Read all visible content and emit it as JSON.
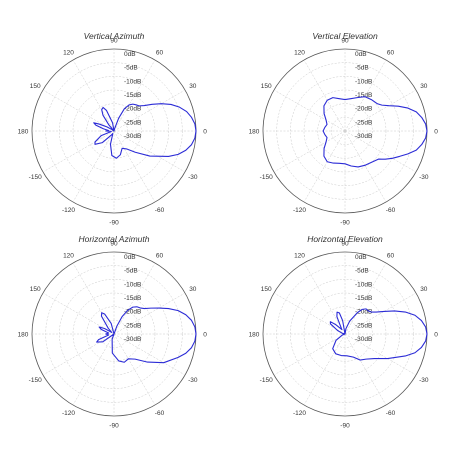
{
  "chart_data": [
    {
      "type": "polar",
      "title": "Vertical Azimuth",
      "r_unit": "dB",
      "r_range": [
        -30,
        0
      ],
      "rings": [
        "0dB",
        "-5dB",
        "-10dB",
        "-15dB",
        "-20dB",
        "-25dB",
        "-30dB"
      ],
      "angle_labels": [
        "0",
        "30",
        "60",
        "90",
        "120",
        "150",
        "180",
        "-150",
        "-120",
        "-90",
        "-60",
        "-30"
      ],
      "grid": true,
      "series_color": "#2b2bd6",
      "series": [
        {
          "values": [
            {
              "angle": 0,
              "db": 0
            },
            {
              "angle": 5,
              "db": -0.3
            },
            {
              "angle": 10,
              "db": -1.2
            },
            {
              "angle": 15,
              "db": -2.5
            },
            {
              "angle": 20,
              "db": -4.5
            },
            {
              "angle": 25,
              "db": -7
            },
            {
              "angle": 30,
              "db": -10
            },
            {
              "angle": 35,
              "db": -13
            },
            {
              "angle": 40,
              "db": -15.5
            },
            {
              "angle": 45,
              "db": -17
            },
            {
              "angle": 50,
              "db": -17.5
            },
            {
              "angle": 55,
              "db": -18
            },
            {
              "angle": 60,
              "db": -19
            },
            {
              "angle": 65,
              "db": -21
            },
            {
              "angle": 70,
              "db": -25
            },
            {
              "angle": 75,
              "db": -29
            },
            {
              "angle": 80,
              "db": -30
            },
            {
              "angle": 90,
              "db": -30
            },
            {
              "angle": 100,
              "db": -27
            },
            {
              "angle": 110,
              "db": -22
            },
            {
              "angle": 115,
              "db": -20.5
            },
            {
              "angle": 120,
              "db": -21
            },
            {
              "angle": 125,
              "db": -23
            },
            {
              "angle": 130,
              "db": -27
            },
            {
              "angle": 140,
              "db": -30
            },
            {
              "angle": 145,
              "db": -29
            },
            {
              "angle": 150,
              "db": -27
            },
            {
              "angle": 155,
              "db": -24
            },
            {
              "angle": 158,
              "db": -22
            },
            {
              "angle": 162,
              "db": -23
            },
            {
              "angle": 168,
              "db": -26
            },
            {
              "angle": 175,
              "db": -28
            },
            {
              "angle": 180,
              "db": -27
            },
            {
              "angle": 190,
              "db": -29
            },
            {
              "angle": 200,
              "db": -25
            },
            {
              "angle": 210,
              "db": -22
            },
            {
              "angle": 215,
              "db": -21.5
            },
            {
              "angle": 225,
              "db": -24
            },
            {
              "angle": 235,
              "db": -28
            },
            {
              "angle": 245,
              "db": -29
            },
            {
              "angle": 255,
              "db": -25
            },
            {
              "angle": 265,
              "db": -21
            },
            {
              "angle": 275,
              "db": -20
            },
            {
              "angle": 285,
              "db": -21
            },
            {
              "angle": 295,
              "db": -23
            },
            {
              "angle": 305,
              "db": -22
            },
            {
              "angle": 315,
              "db": -19
            },
            {
              "angle": 325,
              "db": -14
            },
            {
              "angle": 335,
              "db": -8
            },
            {
              "angle": 340,
              "db": -5
            },
            {
              "angle": 345,
              "db": -2.8
            },
            {
              "angle": 350,
              "db": -1.2
            },
            {
              "angle": 355,
              "db": -0.3
            }
          ]
        }
      ]
    },
    {
      "type": "polar",
      "title": "Vertical Elevation",
      "r_unit": "dB",
      "r_range": [
        -30,
        0
      ],
      "rings": [
        "0dB",
        "-5dB",
        "-10dB",
        "-15dB",
        "-20dB",
        "-25dB",
        "-30dB"
      ],
      "angle_labels": [
        "0",
        "30",
        "60",
        "90",
        "120",
        "150",
        "180",
        "-150",
        "-120",
        "-90",
        "-60",
        "-30"
      ],
      "grid": true,
      "series_color": "#2b2bd6",
      "series": [
        {
          "values": [
            {
              "angle": 0,
              "db": 0
            },
            {
              "angle": 5,
              "db": -0.4
            },
            {
              "angle": 10,
              "db": -1.5
            },
            {
              "angle": 15,
              "db": -3
            },
            {
              "angle": 20,
              "db": -5.5
            },
            {
              "angle": 25,
              "db": -8.5
            },
            {
              "angle": 30,
              "db": -11.5
            },
            {
              "angle": 35,
              "db": -13.5
            },
            {
              "angle": 40,
              "db": -14.5
            },
            {
              "angle": 50,
              "db": -15
            },
            {
              "angle": 60,
              "db": -15.5
            },
            {
              "angle": 70,
              "db": -17
            },
            {
              "angle": 80,
              "db": -18
            },
            {
              "angle": 90,
              "db": -18.5
            },
            {
              "angle": 100,
              "db": -18
            },
            {
              "angle": 110,
              "db": -17
            },
            {
              "angle": 120,
              "db": -17
            },
            {
              "angle": 130,
              "db": -18
            },
            {
              "angle": 140,
              "db": -20
            },
            {
              "angle": 150,
              "db": -22
            },
            {
              "angle": 160,
              "db": -23
            },
            {
              "angle": 170,
              "db": -22.5
            },
            {
              "angle": 180,
              "db": -22
            },
            {
              "angle": 190,
              "db": -22.5
            },
            {
              "angle": 200,
              "db": -23
            },
            {
              "angle": 210,
              "db": -22
            },
            {
              "angle": 220,
              "db": -20
            },
            {
              "angle": 230,
              "db": -18
            },
            {
              "angle": 240,
              "db": -17
            },
            {
              "angle": 250,
              "db": -17.5
            },
            {
              "angle": 260,
              "db": -18
            },
            {
              "angle": 270,
              "db": -18
            },
            {
              "angle": 280,
              "db": -17
            },
            {
              "angle": 290,
              "db": -16
            },
            {
              "angle": 300,
              "db": -15.5
            },
            {
              "angle": 310,
              "db": -15
            },
            {
              "angle": 320,
              "db": -14
            },
            {
              "angle": 325,
              "db": -12
            },
            {
              "angle": 330,
              "db": -10
            },
            {
              "angle": 335,
              "db": -8
            },
            {
              "angle": 340,
              "db": -5.5
            },
            {
              "angle": 345,
              "db": -3
            },
            {
              "angle": 350,
              "db": -1.5
            },
            {
              "angle": 355,
              "db": -0.4
            }
          ]
        }
      ]
    },
    {
      "type": "polar",
      "title": "Horizontal Azimuth",
      "r_unit": "dB",
      "r_range": [
        -30,
        0
      ],
      "rings": [
        "0dB",
        "-5dB",
        "-10dB",
        "-15dB",
        "-20dB",
        "-25dB",
        "-30dB"
      ],
      "angle_labels": [
        "0",
        "30",
        "60",
        "90",
        "120",
        "150",
        "180",
        "-150",
        "-120",
        "-90",
        "-60",
        "-30"
      ],
      "grid": true,
      "series_color": "#2b2bd6",
      "series": [
        {
          "values": [
            {
              "angle": 0,
              "db": 0
            },
            {
              "angle": 5,
              "db": -0.3
            },
            {
              "angle": 10,
              "db": -1.2
            },
            {
              "angle": 15,
              "db": -2.8
            },
            {
              "angle": 20,
              "db": -5
            },
            {
              "angle": 25,
              "db": -8
            },
            {
              "angle": 30,
              "db": -11
            },
            {
              "angle": 35,
              "db": -13.5
            },
            {
              "angle": 40,
              "db": -15.5
            },
            {
              "angle": 45,
              "db": -16.5
            },
            {
              "angle": 50,
              "db": -17
            },
            {
              "angle": 55,
              "db": -18
            },
            {
              "angle": 60,
              "db": -20
            },
            {
              "angle": 65,
              "db": -23
            },
            {
              "angle": 70,
              "db": -27
            },
            {
              "angle": 75,
              "db": -30
            },
            {
              "angle": 90,
              "db": -30
            },
            {
              "angle": 105,
              "db": -26
            },
            {
              "angle": 115,
              "db": -22
            },
            {
              "angle": 120,
              "db": -21
            },
            {
              "angle": 125,
              "db": -22
            },
            {
              "angle": 135,
              "db": -27
            },
            {
              "angle": 145,
              "db": -29
            },
            {
              "angle": 150,
              "db": -26
            },
            {
              "angle": 155,
              "db": -24
            },
            {
              "angle": 160,
              "db": -25
            },
            {
              "angle": 170,
              "db": -28
            },
            {
              "angle": 180,
              "db": -27
            },
            {
              "angle": 190,
              "db": -28
            },
            {
              "angle": 200,
              "db": -24
            },
            {
              "angle": 205,
              "db": -23
            },
            {
              "angle": 215,
              "db": -25
            },
            {
              "angle": 230,
              "db": -30
            },
            {
              "angle": 250,
              "db": -28
            },
            {
              "angle": 265,
              "db": -23
            },
            {
              "angle": 280,
              "db": -20
            },
            {
              "angle": 290,
              "db": -19
            },
            {
              "angle": 300,
              "db": -19.5
            },
            {
              "angle": 310,
              "db": -18
            },
            {
              "angle": 320,
              "db": -14
            },
            {
              "angle": 330,
              "db": -9
            },
            {
              "angle": 340,
              "db": -5
            },
            {
              "angle": 345,
              "db": -2.8
            },
            {
              "angle": 350,
              "db": -1.2
            },
            {
              "angle": 355,
              "db": -0.3
            }
          ]
        }
      ]
    },
    {
      "type": "polar",
      "title": "Horizontal Elevation",
      "r_unit": "dB",
      "r_range": [
        -30,
        0
      ],
      "rings": [
        "0dB",
        "-5dB",
        "-10dB",
        "-15dB",
        "-20dB",
        "-25dB",
        "-30dB"
      ],
      "angle_labels": [
        "0",
        "30",
        "60",
        "90",
        "120",
        "150",
        "180",
        "-150",
        "-120",
        "-90",
        "-60",
        "-30"
      ],
      "grid": true,
      "series_color": "#2b2bd6",
      "series": [
        {
          "values": [
            {
              "angle": 0,
              "db": 0
            },
            {
              "angle": 5,
              "db": -0.4
            },
            {
              "angle": 10,
              "db": -1.6
            },
            {
              "angle": 15,
              "db": -3.5
            },
            {
              "angle": 20,
              "db": -6.5
            },
            {
              "angle": 25,
              "db": -10
            },
            {
              "angle": 30,
              "db": -13.5
            },
            {
              "angle": 35,
              "db": -16
            },
            {
              "angle": 40,
              "db": -17.5
            },
            {
              "angle": 45,
              "db": -18
            },
            {
              "angle": 50,
              "db": -18
            },
            {
              "angle": 55,
              "db": -19
            },
            {
              "angle": 60,
              "db": -21
            },
            {
              "angle": 70,
              "db": -25
            },
            {
              "angle": 80,
              "db": -28
            },
            {
              "angle": 90,
              "db": -30
            },
            {
              "angle": 100,
              "db": -25
            },
            {
              "angle": 105,
              "db": -22
            },
            {
              "angle": 110,
              "db": -21.5
            },
            {
              "angle": 115,
              "db": -23
            },
            {
              "angle": 125,
              "db": -28
            },
            {
              "angle": 135,
              "db": -25
            },
            {
              "angle": 140,
              "db": -23
            },
            {
              "angle": 145,
              "db": -23.5
            },
            {
              "angle": 155,
              "db": -27
            },
            {
              "angle": 165,
              "db": -29
            },
            {
              "angle": 180,
              "db": -30
            },
            {
              "angle": 200,
              "db": -29
            },
            {
              "angle": 215,
              "db": -26
            },
            {
              "angle": 230,
              "db": -23
            },
            {
              "angle": 245,
              "db": -22
            },
            {
              "angle": 260,
              "db": -22
            },
            {
              "angle": 275,
              "db": -22
            },
            {
              "angle": 290,
              "db": -21
            },
            {
              "angle": 300,
              "db": -19
            },
            {
              "angle": 310,
              "db": -18
            },
            {
              "angle": 320,
              "db": -16
            },
            {
              "angle": 330,
              "db": -12
            },
            {
              "angle": 340,
              "db": -6.5
            },
            {
              "angle": 345,
              "db": -3.5
            },
            {
              "angle": 350,
              "db": -1.6
            },
            {
              "angle": 355,
              "db": -0.4
            }
          ]
        }
      ]
    }
  ]
}
